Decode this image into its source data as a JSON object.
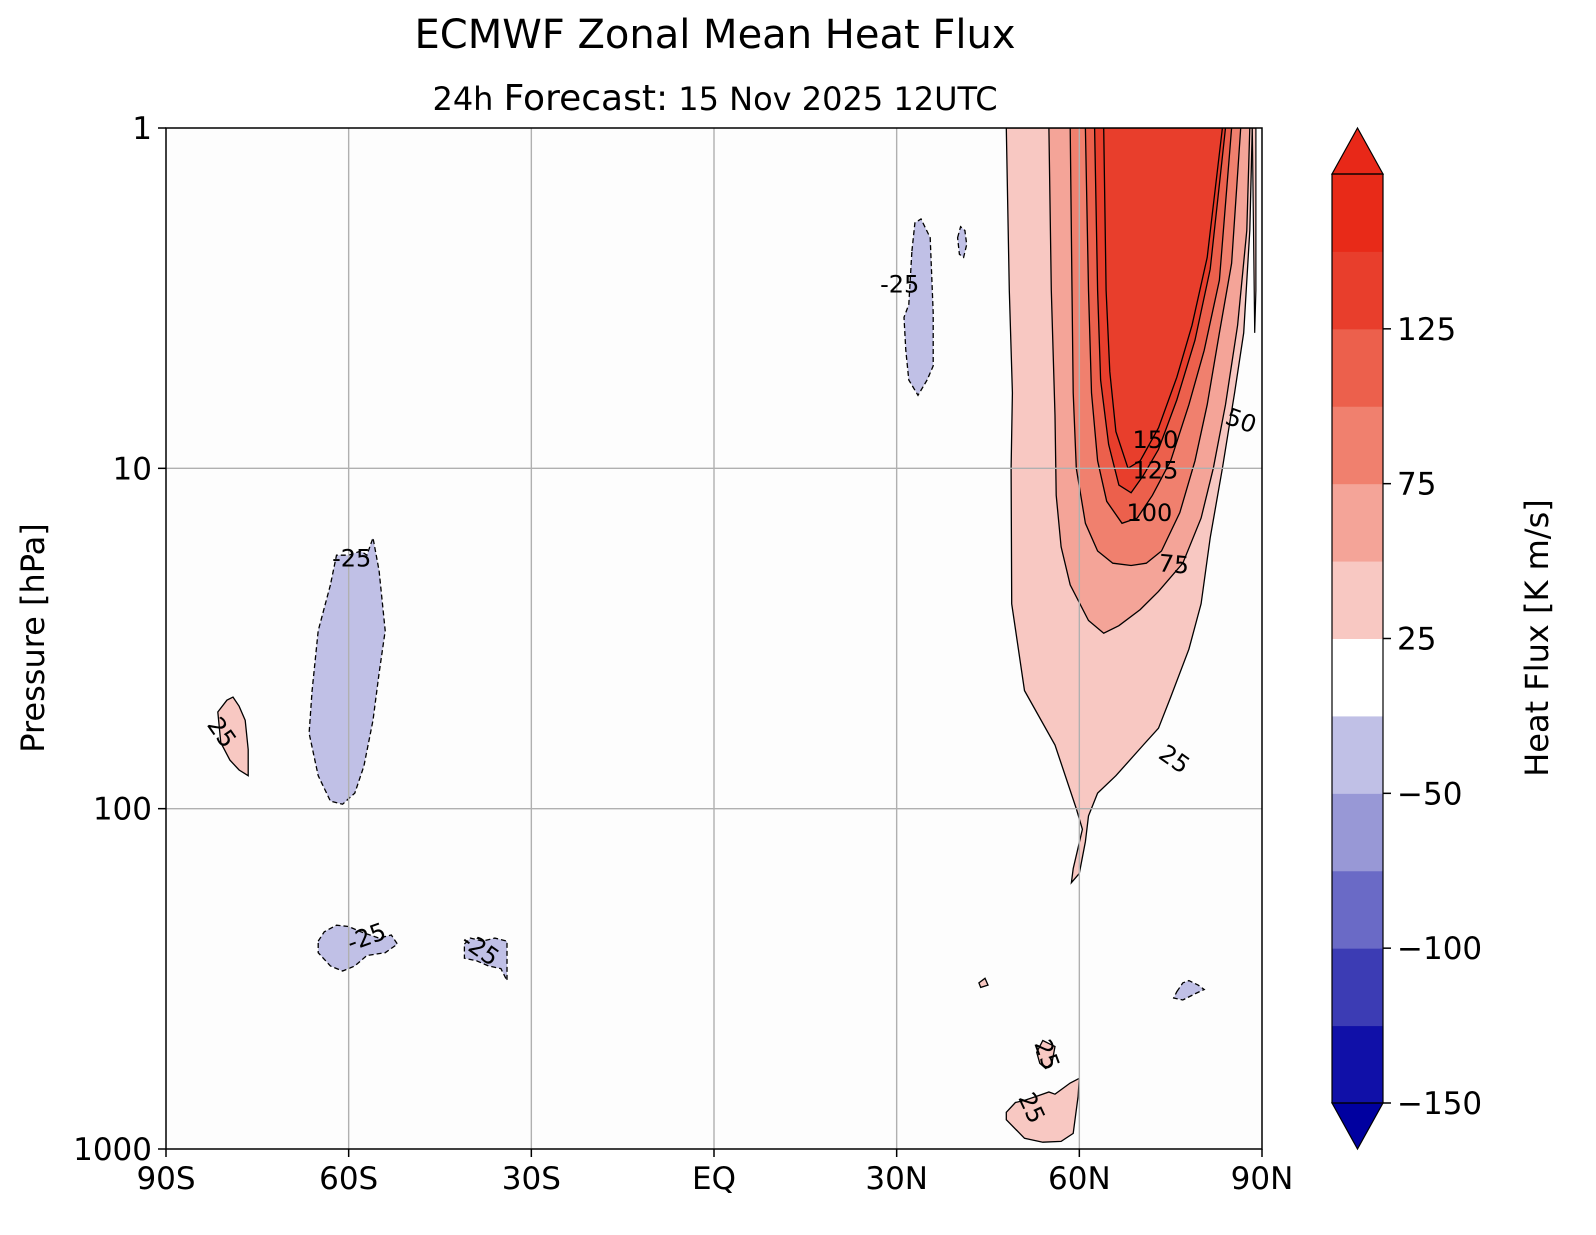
{
  "title": "ECMWF Zonal Mean Heat Flux",
  "subtitle": {
    "hours": "24h",
    "label": "Forecast:",
    "date": "15 Nov 2025",
    "time": "12UTC"
  },
  "chart_data": {
    "type": "heatmap",
    "title": "ECMWF Zonal Mean Heat Flux",
    "subtitle": "24h Forecast: 15 Nov 2025 12UTC",
    "xlabel": "",
    "ylabel": "Pressure [hPa]",
    "x_ticks": [
      "90S",
      "60S",
      "30S",
      "EQ",
      "30N",
      "60N",
      "90N"
    ],
    "x_values": [
      -90,
      -60,
      -30,
      0,
      30,
      60,
      90
    ],
    "y_ticks": [
      "1",
      "10",
      "100",
      "1000"
    ],
    "y_values": [
      1,
      10,
      100,
      1000
    ],
    "y_scale": "log",
    "ylim": [
      1000,
      1
    ],
    "xlim": [
      -90,
      90
    ],
    "grid": true,
    "colorbar": {
      "label": "Heat Flux [K  m/s]",
      "levels": [
        -150,
        -125,
        -100,
        -75,
        -50,
        -25,
        25,
        50,
        75,
        100,
        125,
        150
      ],
      "tick_values": [
        -150,
        -100,
        -50,
        25,
        75,
        125
      ],
      "tick_labels": [
        "−150",
        "−100",
        "−50",
        "25",
        "75",
        "125"
      ],
      "colors": [
        "#1010a8",
        "#3c3cb4",
        "#6a6ac6",
        "#9898d6",
        "#c0c0e6",
        "#ffffff",
        "#f8c8c2",
        "#f4a498",
        "#f0806e",
        "#ec604c",
        "#e83e2c",
        "#e82a18"
      ],
      "extend": "both",
      "under_color": "#0000a0",
      "over_color": "#e82818"
    },
    "contour_labels": [
      "-25",
      "-25",
      "-25",
      "-25",
      "25",
      "25",
      "25",
      "25",
      "50",
      "75",
      "100",
      "125",
      "150"
    ],
    "features": [
      {
        "name": "NH stratospheric positive flux maximum",
        "lat_range": [
          48,
          90
        ],
        "p_range": [
          1,
          150
        ],
        "peak": 150
      },
      {
        "name": "negative flux 60S",
        "lat_range": [
          -66,
          -51
        ],
        "p_range": [
          17,
          95
        ],
        "value": -25
      },
      {
        "name": "positive flux 80S",
        "lat_range": [
          -81,
          -75
        ],
        "p_range": [
          45,
          85
        ],
        "value": 25
      },
      {
        "name": "negative flux lower stratosphere 60S",
        "lat_range": [
          -65,
          -50
        ],
        "p_range": [
          220,
          350
        ],
        "value": -25
      },
      {
        "name": "negative flux 40S",
        "lat_range": [
          -41,
          -34
        ],
        "p_range": [
          240,
          350
        ],
        "value": -25
      },
      {
        "name": "negative flux 35N upper",
        "lat_range": [
          31,
          40
        ],
        "p_range": [
          1.8,
          6
        ],
        "value": -25
      },
      {
        "name": "positive flux 55N surface",
        "lat_range": [
          48,
          60
        ],
        "p_range": [
          500,
          960
        ],
        "value": 25
      },
      {
        "name": "negative flux 78N",
        "lat_range": [
          75,
          80
        ],
        "p_range": [
          310,
          370
        ],
        "value": -25
      }
    ]
  }
}
